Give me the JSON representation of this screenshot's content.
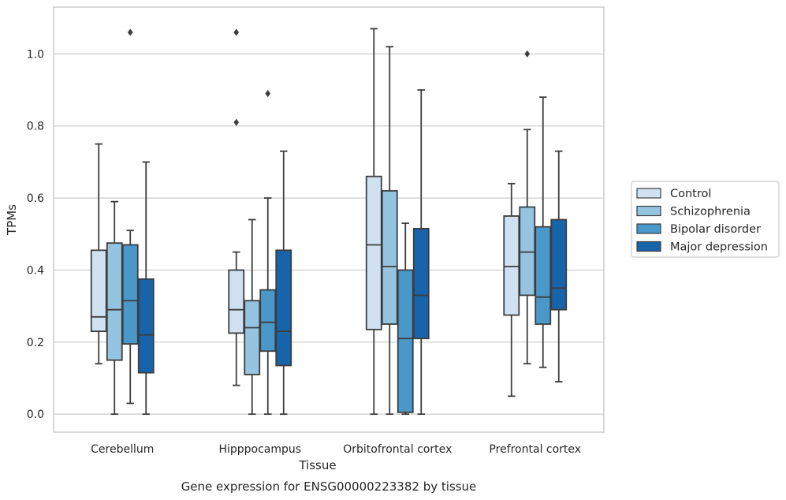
{
  "chart_data": {
    "type": "box",
    "title": "",
    "caption": "Gene expression for ENSG00000223382 by tissue",
    "xlabel": "Tissue",
    "ylabel": "TPMs",
    "ylim": [
      -0.05,
      1.13
    ],
    "yticks": [
      0.0,
      0.2,
      0.4,
      0.6,
      0.8,
      1.0
    ],
    "ytick_labels": [
      "0.0",
      "0.2",
      "0.4",
      "0.6",
      "0.8",
      "1.0"
    ],
    "grid": "horizontal",
    "legend_position": "right",
    "categories": [
      "Cerebellum",
      "Hipppocampus",
      "Orbitofrontal cortex",
      "Prefrontal cortex"
    ],
    "series": [
      {
        "name": "Control",
        "color": "#d0e1f2",
        "boxes": [
          {
            "q1": 0.23,
            "median": 0.27,
            "q3": 0.455,
            "whisker_low": 0.14,
            "whisker_high": 0.75,
            "outliers": []
          },
          {
            "q1": 0.225,
            "median": 0.29,
            "q3": 0.4,
            "whisker_low": 0.08,
            "whisker_high": 0.45,
            "outliers": [
              0.81,
              1.06
            ]
          },
          {
            "q1": 0.235,
            "median": 0.47,
            "q3": 0.66,
            "whisker_low": 0.0,
            "whisker_high": 1.07,
            "outliers": []
          },
          {
            "q1": 0.275,
            "median": 0.41,
            "q3": 0.55,
            "whisker_low": 0.05,
            "whisker_high": 0.64,
            "outliers": []
          }
        ]
      },
      {
        "name": "Schizophrenia",
        "color": "#94c4df",
        "boxes": [
          {
            "q1": 0.15,
            "median": 0.29,
            "q3": 0.475,
            "whisker_low": 0.0,
            "whisker_high": 0.59,
            "outliers": []
          },
          {
            "q1": 0.11,
            "median": 0.24,
            "q3": 0.315,
            "whisker_low": 0.0,
            "whisker_high": 0.54,
            "outliers": []
          },
          {
            "q1": 0.25,
            "median": 0.41,
            "q3": 0.62,
            "whisker_low": 0.0,
            "whisker_high": 1.02,
            "outliers": []
          },
          {
            "q1": 0.33,
            "median": 0.45,
            "q3": 0.575,
            "whisker_low": 0.14,
            "whisker_high": 0.79,
            "outliers": [
              1.0
            ]
          }
        ]
      },
      {
        "name": "Bipolar disorder",
        "color": "#4a98c9",
        "boxes": [
          {
            "q1": 0.195,
            "median": 0.315,
            "q3": 0.47,
            "whisker_low": 0.03,
            "whisker_high": 0.51,
            "outliers": [
              1.06
            ]
          },
          {
            "q1": 0.175,
            "median": 0.255,
            "q3": 0.345,
            "whisker_low": 0.0,
            "whisker_high": 0.6,
            "outliers": [
              0.89
            ]
          },
          {
            "q1": 0.005,
            "median": 0.21,
            "q3": 0.4,
            "whisker_low": 0.0,
            "whisker_high": 0.53,
            "outliers": []
          },
          {
            "q1": 0.25,
            "median": 0.325,
            "q3": 0.52,
            "whisker_low": 0.13,
            "whisker_high": 0.88,
            "outliers": []
          }
        ]
      },
      {
        "name": "Major depression",
        "color": "#1764ab",
        "boxes": [
          {
            "q1": 0.115,
            "median": 0.22,
            "q3": 0.375,
            "whisker_low": 0.0,
            "whisker_high": 0.7,
            "outliers": []
          },
          {
            "q1": 0.135,
            "median": 0.23,
            "q3": 0.455,
            "whisker_low": 0.0,
            "whisker_high": 0.73,
            "outliers": []
          },
          {
            "q1": 0.21,
            "median": 0.33,
            "q3": 0.515,
            "whisker_low": 0.0,
            "whisker_high": 0.9,
            "outliers": []
          },
          {
            "q1": 0.29,
            "median": 0.35,
            "q3": 0.54,
            "whisker_low": 0.09,
            "whisker_high": 0.73,
            "outliers": []
          }
        ]
      }
    ]
  }
}
